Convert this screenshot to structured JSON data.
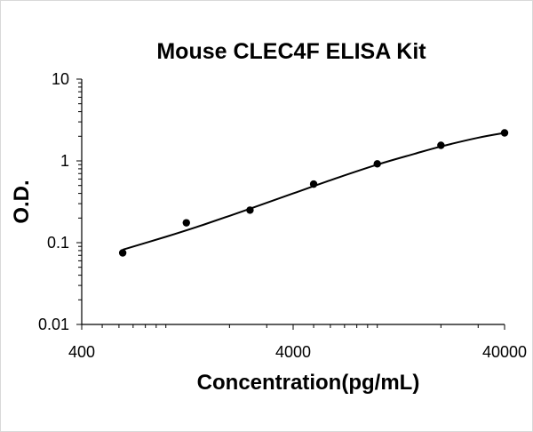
{
  "chart_data": {
    "type": "scatter",
    "title": "Mouse CLEC4F ELISA Kit",
    "xlabel": "Concentration(pg/mL)",
    "ylabel": "O.D.",
    "xscale": "log",
    "yscale": "log",
    "xlim": [
      400,
      40000
    ],
    "ylim": [
      0.01,
      10
    ],
    "xticks": [
      {
        "value": 400,
        "label": "400"
      },
      {
        "value": 4000,
        "label": "4000"
      },
      {
        "value": 40000,
        "label": "40000"
      }
    ],
    "yticks": [
      {
        "value": 0.01,
        "label": "0.01"
      },
      {
        "value": 0.1,
        "label": "0.1"
      },
      {
        "value": 1,
        "label": "1"
      },
      {
        "value": 10,
        "label": "10"
      }
    ],
    "grid": false,
    "legend": "none",
    "series": [
      {
        "points": [
          {
            "x": 625,
            "y": 0.075
          },
          {
            "x": 1250,
            "y": 0.175
          },
          {
            "x": 2500,
            "y": 0.25
          },
          {
            "x": 5000,
            "y": 0.52
          },
          {
            "x": 10000,
            "y": 0.92
          },
          {
            "x": 20000,
            "y": 1.55
          },
          {
            "x": 40000,
            "y": 2.2
          }
        ],
        "fit_curve": [
          {
            "x": 625,
            "y": 0.082
          },
          {
            "x": 1000,
            "y": 0.118
          },
          {
            "x": 1500,
            "y": 0.165
          },
          {
            "x": 2500,
            "y": 0.26
          },
          {
            "x": 4000,
            "y": 0.4
          },
          {
            "x": 6000,
            "y": 0.58
          },
          {
            "x": 10000,
            "y": 0.9
          },
          {
            "x": 15000,
            "y": 1.22
          },
          {
            "x": 20000,
            "y": 1.5
          },
          {
            "x": 30000,
            "y": 1.92
          },
          {
            "x": 40000,
            "y": 2.2
          }
        ],
        "color": "#000000"
      }
    ]
  }
}
